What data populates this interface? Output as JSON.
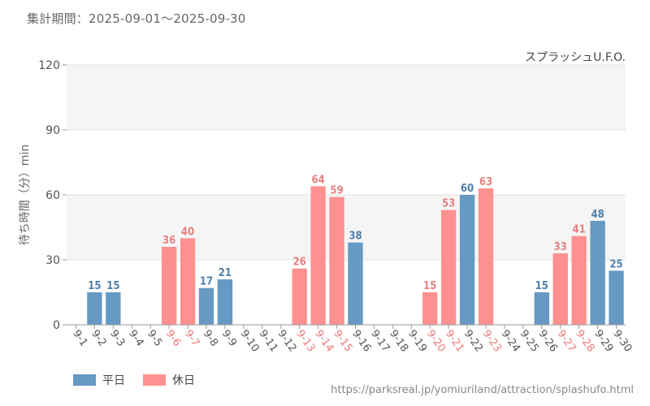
{
  "header": {
    "period_text": "集計期間：2025-09-01～2025-09-30"
  },
  "chart_data": {
    "type": "bar",
    "title": "スプラッシュU.F.O.",
    "xlabel": "",
    "ylabel": "待ち時間（分）min",
    "ylim": [
      0,
      120
    ],
    "yticks": [
      0,
      30,
      60,
      90,
      120
    ],
    "grid": true,
    "categories": [
      "9-1",
      "9-2",
      "9-3",
      "9-4",
      "9-5",
      "9-6",
      "9-7",
      "9-8",
      "9-9",
      "9-10",
      "9-11",
      "9-12",
      "9-13",
      "9-14",
      "9-15",
      "9-16",
      "9-17",
      "9-18",
      "9-19",
      "9-20",
      "9-21",
      "9-22",
      "9-23",
      "9-24",
      "9-25",
      "9-26",
      "9-27",
      "9-28",
      "9-29",
      "9-30"
    ],
    "values": [
      null,
      15,
      15,
      null,
      null,
      36,
      40,
      17,
      21,
      null,
      null,
      null,
      26,
      64,
      59,
      38,
      null,
      null,
      null,
      15,
      53,
      60,
      63,
      null,
      null,
      15,
      33,
      41,
      48,
      25
    ],
    "day_types": [
      "weekday",
      "weekday",
      "weekday",
      "weekday",
      "weekday",
      "holiday",
      "holiday",
      "weekday",
      "weekday",
      "weekday",
      "weekday",
      "weekday",
      "holiday",
      "holiday",
      "holiday",
      "weekday",
      "weekday",
      "weekday",
      "weekday",
      "holiday",
      "holiday",
      "weekday",
      "holiday",
      "weekday",
      "weekday",
      "weekday",
      "holiday",
      "holiday",
      "weekday",
      "weekday"
    ],
    "legend": [
      {
        "key": "weekday",
        "label": "平日",
        "color": "#6699c4"
      },
      {
        "key": "holiday",
        "label": "休日",
        "color": "#ff9090"
      }
    ],
    "colors": {
      "weekday_bar": "#6699c4",
      "holiday_bar": "#ff9090",
      "weekday_label": "#4f7fac",
      "holiday_label": "#e87f7f",
      "weekday_tick": "#555555",
      "holiday_tick": "#f07878",
      "band": "#f5f5f5"
    }
  },
  "footer": {
    "source_url": "https://parksreal.jp/yomiuriland/attraction/splashufo.html"
  }
}
